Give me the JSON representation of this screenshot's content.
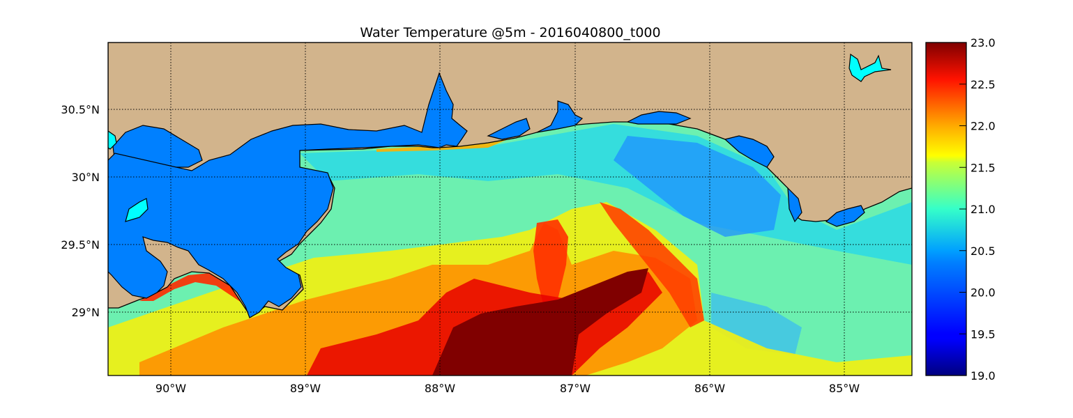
{
  "title": "Water Temperature @5m - 2016040800_t000",
  "map": {
    "lon_range": [
      -90.5,
      -84.5
    ],
    "lat_range": [
      28.53,
      31.0
    ],
    "lon_ticks": [
      {
        "value": -90,
        "label": "90°W"
      },
      {
        "value": -89,
        "label": "89°W"
      },
      {
        "value": -88,
        "label": "88°W"
      },
      {
        "value": -87,
        "label": "87°W"
      },
      {
        "value": -86,
        "label": "86°W"
      },
      {
        "value": -85,
        "label": "85°W"
      }
    ],
    "lat_ticks": [
      {
        "value": 30.5,
        "label": "30.5°N"
      },
      {
        "value": 30.0,
        "label": "30°N"
      },
      {
        "value": 29.5,
        "label": "29.5°N"
      },
      {
        "value": 29.0,
        "label": "29°N"
      }
    ],
    "gridlines": "dotted",
    "land_color": "#d2b48c",
    "inland_water_color": "#0080ff"
  },
  "colorbar": {
    "range": [
      19.0,
      23.0
    ],
    "colormap": "jet",
    "ticks": [
      {
        "value": 23.0,
        "label": "23.0"
      },
      {
        "value": 22.5,
        "label": "22.5"
      },
      {
        "value": 22.0,
        "label": "22.0"
      },
      {
        "value": 21.5,
        "label": "21.5"
      },
      {
        "value": 21.0,
        "label": "21.0"
      },
      {
        "value": 20.5,
        "label": "20.5"
      },
      {
        "value": 20.0,
        "label": "20.0"
      },
      {
        "value": 19.5,
        "label": "19.5"
      },
      {
        "value": 19.0,
        "label": "19.0"
      }
    ]
  }
}
